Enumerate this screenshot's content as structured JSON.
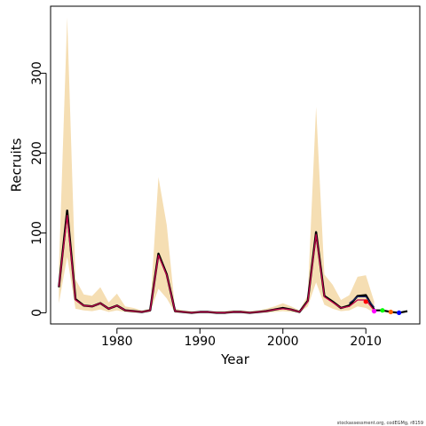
{
  "footer": "stockassessment.org, codEGMg, r8159",
  "chart_data": {
    "type": "line",
    "title": "",
    "xlabel": "Year",
    "ylabel": "Recruits",
    "xlim": [
      1972,
      2016.5
    ],
    "ylim": [
      -14,
      384
    ],
    "xticks": [
      1980,
      1990,
      2000,
      2010
    ],
    "yticks": [
      0,
      100,
      200,
      300
    ],
    "grid": false,
    "colors": {
      "band": "#f5deb3",
      "line_main": "#000000",
      "line_overlay": "#c0004a",
      "line_blue": "#1f2a6e",
      "points": [
        "#ff0000",
        "#ff00ff",
        "#00ff00",
        "#ff6600",
        "#0000ff"
      ]
    },
    "band": {
      "x": [
        1973,
        1974,
        1975,
        1976,
        1977,
        1978,
        1979,
        1980,
        1981,
        1982,
        1983,
        1984,
        1985,
        1986,
        1987,
        1988,
        1989,
        1990,
        1991,
        1992,
        1993,
        1994,
        1995,
        1996,
        1997,
        1998,
        1999,
        2000,
        2001,
        2002,
        2003,
        2004,
        2005,
        2006,
        2007,
        2008,
        2009,
        2010,
        2011
      ],
      "upper": [
        55,
        370,
        42,
        23,
        21,
        32,
        13,
        24,
        8,
        6,
        3,
        5,
        170,
        110,
        5,
        3,
        2,
        2,
        2,
        2,
        2,
        3,
        3,
        2,
        3,
        5,
        8,
        12,
        8,
        3,
        22,
        258,
        48,
        35,
        16,
        22,
        45,
        47,
        14
      ],
      "lower": [
        12,
        70,
        5,
        3,
        2,
        4,
        1,
        3,
        1,
        0,
        0,
        1,
        30,
        18,
        0,
        0,
        0,
        0,
        0,
        0,
        0,
        0,
        0,
        0,
        0,
        0,
        1,
        2,
        1,
        0,
        8,
        38,
        10,
        5,
        2,
        3,
        8,
        6,
        0
      ]
    },
    "series": [
      {
        "x": [
          1973,
          1974,
          1975,
          1976,
          1977,
          1978,
          1979,
          1980,
          1981,
          1982,
          1983,
          1984,
          1985,
          1986,
          1987,
          1988,
          1989,
          1990,
          1991,
          1992,
          1993,
          1994,
          1995,
          1996,
          1997,
          1998,
          1999,
          2000,
          2001,
          2002,
          2003,
          2004,
          2005,
          2006,
          2007,
          2008,
          2009,
          2010,
          2011
        ],
        "values": [
          32,
          128,
          17,
          9,
          8,
          12,
          5,
          9,
          3,
          2,
          1,
          3,
          74,
          48,
          2,
          1,
          0,
          1,
          1,
          0,
          0,
          1,
          1,
          0,
          1,
          2,
          4,
          6,
          4,
          1,
          15,
          101,
          21,
          14,
          6,
          9,
          21,
          22,
          4
        ]
      },
      {
        "x": [
          1973,
          1974,
          1975,
          1976,
          1977,
          1978,
          1979,
          1980,
          1981,
          1982,
          1983,
          1984,
          1985,
          1986,
          1987,
          1988,
          1989,
          1990,
          1991,
          1992,
          1993,
          1994,
          1995,
          1996,
          1997,
          1998,
          1999,
          2000,
          2001,
          2002,
          2003,
          2004,
          2005,
          2006,
          2007,
          2008,
          2009,
          2010,
          2011
        ],
        "values": [
          33,
          122,
          16,
          9,
          8,
          12,
          5,
          9,
          3,
          2,
          1,
          3,
          72,
          47,
          2,
          1,
          0,
          1,
          1,
          0,
          0,
          1,
          1,
          0,
          1,
          2,
          4,
          5,
          4,
          1,
          14,
          98,
          20,
          13,
          6,
          8,
          16,
          16,
          3
        ]
      },
      {
        "x": [
          2011,
          2012,
          2013,
          2014,
          2015
        ],
        "values": [
          3,
          3,
          1,
          0,
          2
        ]
      }
    ],
    "points": [
      {
        "x": 2010,
        "y": 14
      },
      {
        "x": 2011,
        "y": 2
      },
      {
        "x": 2012,
        "y": 3
      },
      {
        "x": 2013,
        "y": 1
      },
      {
        "x": 2014,
        "y": 0
      }
    ]
  }
}
